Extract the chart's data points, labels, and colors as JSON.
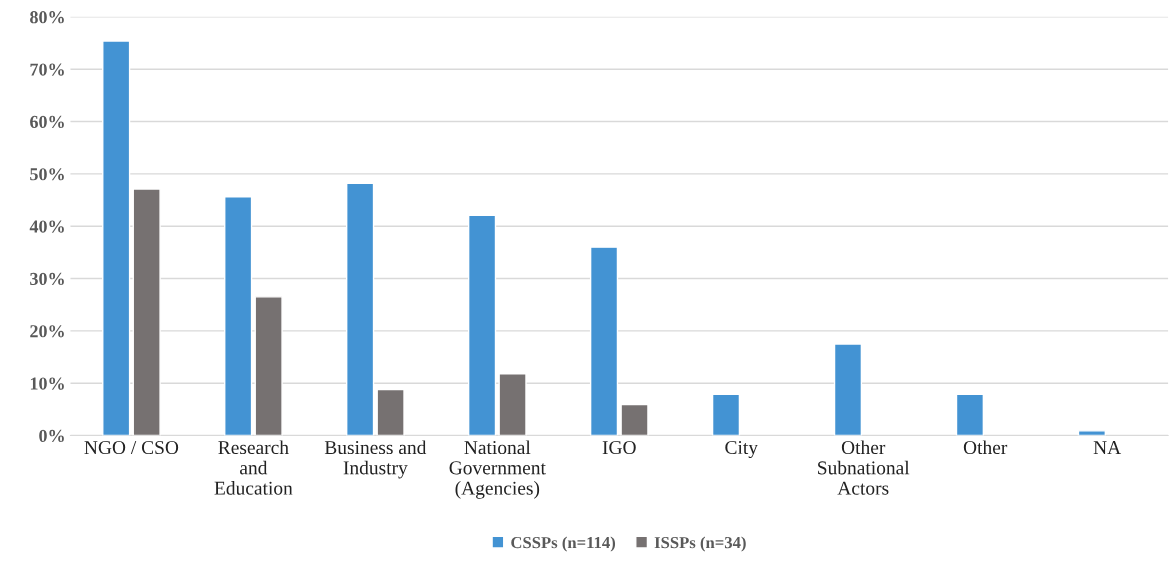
{
  "chart_data": {
    "type": "bar",
    "categories": [
      "NGO / CSO",
      "Research\nand\nEducation",
      "Business and\nIndustry",
      "National\nGovernment\n(Agencies)",
      "IGO",
      "City",
      "Other\nSubnational\nActors",
      "Other",
      "NA"
    ],
    "series": [
      {
        "name": "CSSPs (n=114)",
        "color": "#4393d3",
        "values": [
          75.4,
          45.6,
          48.2,
          42.1,
          36.0,
          7.9,
          17.5,
          7.9,
          0.9
        ]
      },
      {
        "name": "ISSPs (n=34)",
        "color": "#767171",
        "values": [
          47.1,
          26.5,
          8.8,
          11.8,
          5.9,
          null,
          null,
          null,
          null
        ]
      }
    ],
    "ylim": [
      0,
      80
    ],
    "yticks": [
      {
        "value": 0,
        "label": "0%"
      },
      {
        "value": 10,
        "label": "10%"
      },
      {
        "value": 20,
        "label": "20%"
      },
      {
        "value": 30,
        "label": "30%"
      },
      {
        "value": 40,
        "label": "40%"
      },
      {
        "value": 50,
        "label": "50%"
      },
      {
        "value": 60,
        "label": "60%"
      },
      {
        "value": 70,
        "label": "70%"
      },
      {
        "value": 80,
        "label": "80%"
      }
    ],
    "grid": "y",
    "legend": "bottom"
  }
}
